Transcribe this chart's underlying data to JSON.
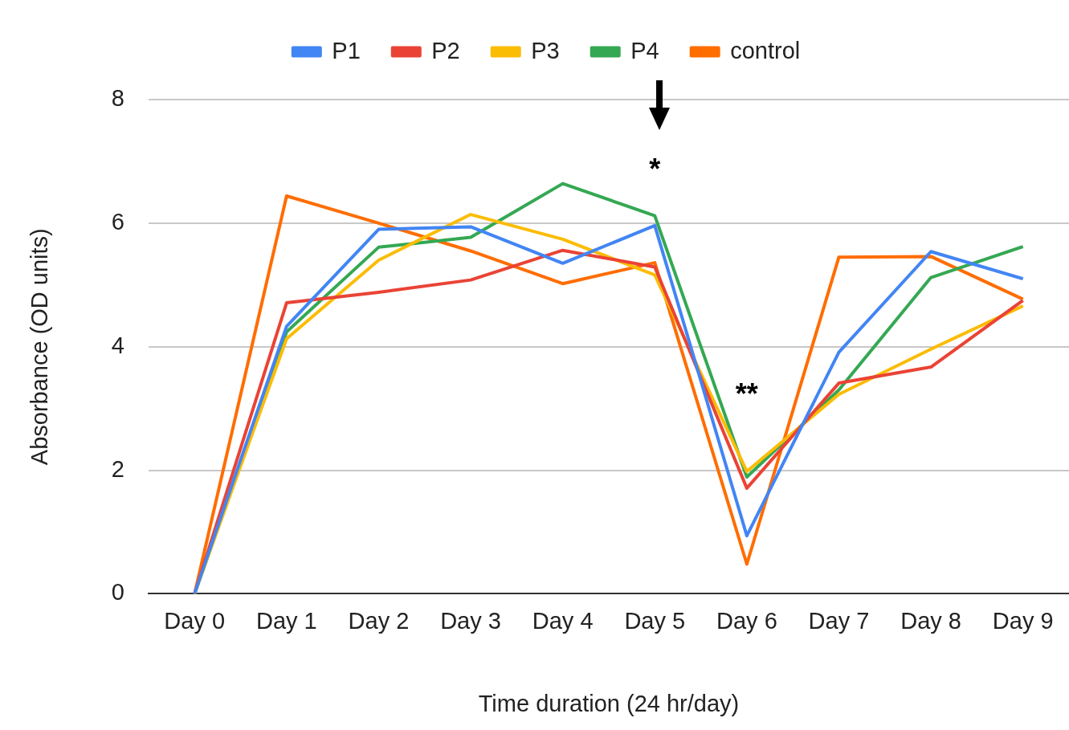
{
  "chart_data": {
    "type": "line",
    "xlabel": "Time duration (24 hr/day)",
    "ylabel": "Absorbance (OD units)",
    "categories": [
      "Day 0",
      "Day 1",
      "Day 2",
      "Day 3",
      "Day 4",
      "Day 5",
      "Day 6",
      "Day 7",
      "Day 8",
      "Day 9"
    ],
    "series": [
      {
        "name": "P1",
        "color": "#4285f4",
        "values": [
          0,
          4.33,
          5.9,
          5.94,
          5.35,
          5.96,
          0.94,
          3.91,
          5.54,
          5.1
        ]
      },
      {
        "name": "P2",
        "color": "#ea4335",
        "values": [
          0,
          4.71,
          4.88,
          5.08,
          5.56,
          5.29,
          1.71,
          3.41,
          3.67,
          4.75
        ]
      },
      {
        "name": "P3",
        "color": "#fbbc04",
        "values": [
          0,
          4.13,
          5.4,
          6.14,
          5.74,
          5.16,
          1.98,
          3.23,
          3.96,
          4.66
        ]
      },
      {
        "name": "P4",
        "color": "#34a853",
        "values": [
          0,
          4.24,
          5.61,
          5.77,
          6.64,
          6.12,
          1.89,
          3.3,
          5.12,
          5.62
        ]
      },
      {
        "name": "control",
        "color": "#ff6d01",
        "values": [
          0,
          6.44,
          6.0,
          5.55,
          5.02,
          5.36,
          0.48,
          5.45,
          5.46,
          4.77
        ]
      }
    ],
    "ylim": [
      0,
      8
    ],
    "yticks": [
      0,
      2,
      4,
      6,
      8
    ],
    "grid": "y",
    "legend": "top",
    "marker": "none",
    "line_style": "solid",
    "annotations": [
      "*",
      "**"
    ]
  }
}
